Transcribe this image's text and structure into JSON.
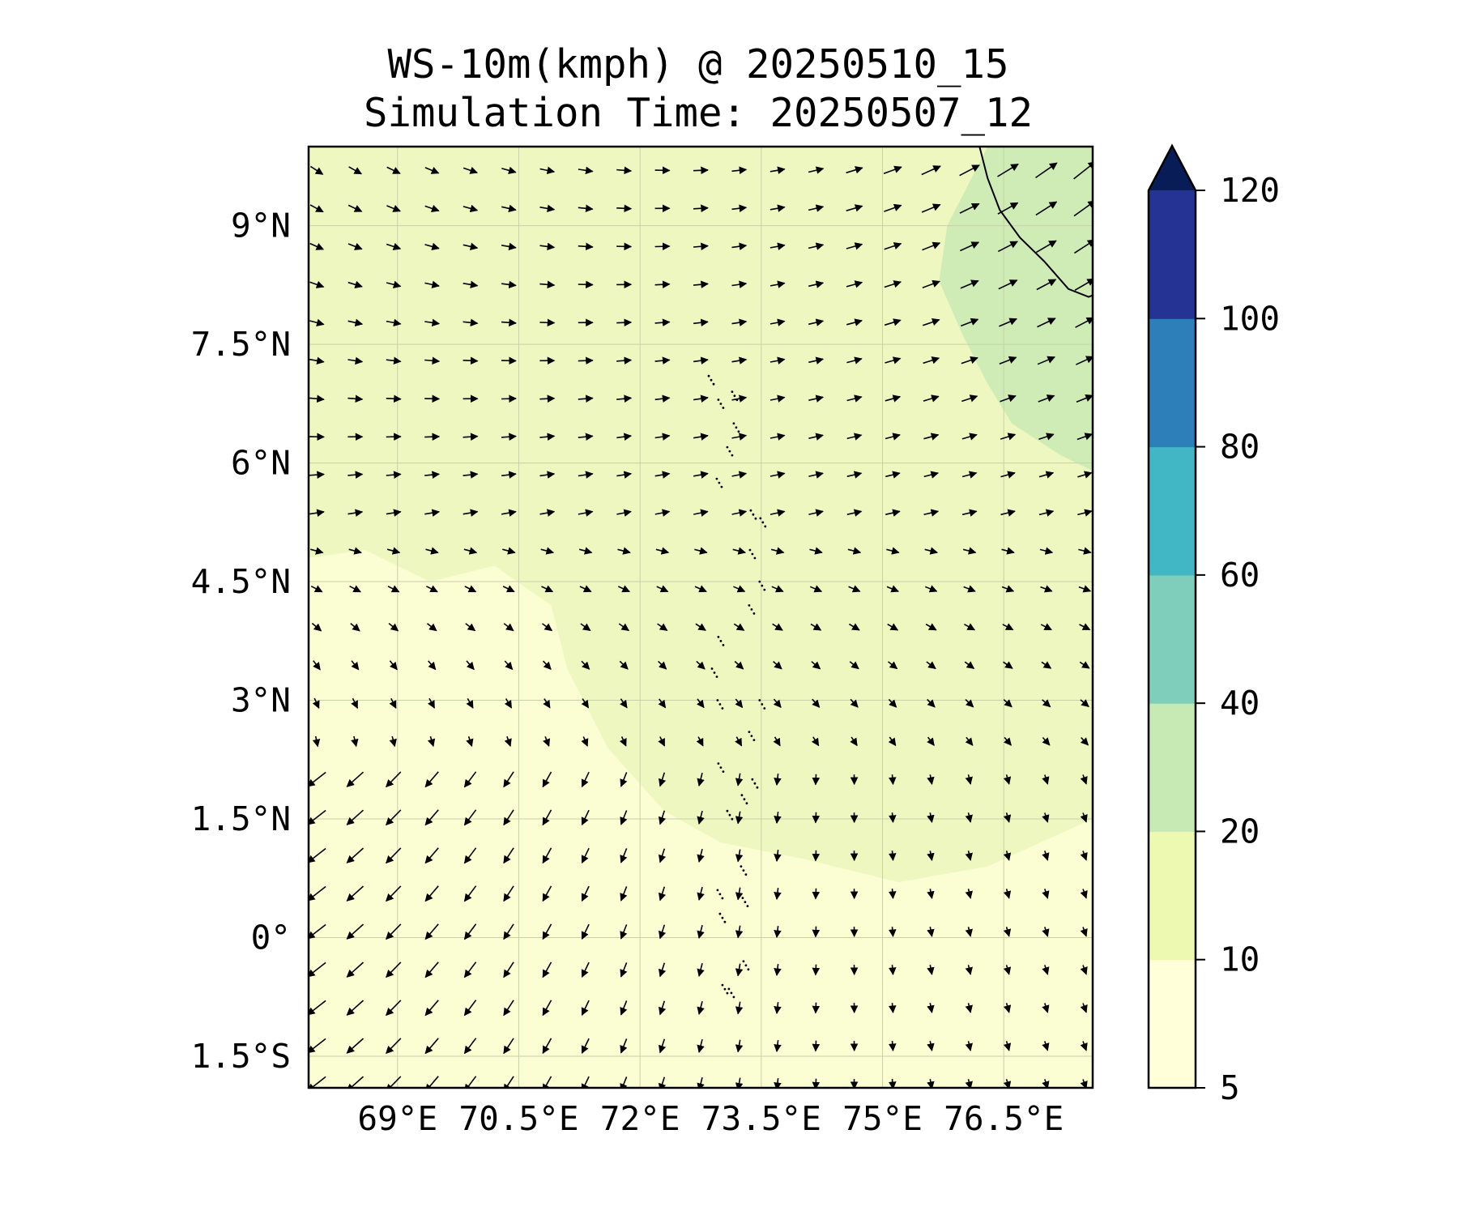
{
  "title": {
    "line1": "WS-10m(kmph) @ 20250510_15",
    "line2": "Simulation Time: 20250507_12"
  },
  "map": {
    "lon_range": [
      67.9,
      77.6
    ],
    "lat_range": [
      -1.9,
      10.0
    ],
    "lat_ticks": [
      {
        "value": 9,
        "label": "9°N"
      },
      {
        "value": 7.5,
        "label": "7.5°N"
      },
      {
        "value": 6,
        "label": "6°N"
      },
      {
        "value": 4.5,
        "label": "4.5°N"
      },
      {
        "value": 3,
        "label": "3°N"
      },
      {
        "value": 1.5,
        "label": "1.5°N"
      },
      {
        "value": 0,
        "label": "0°"
      },
      {
        "value": -1.5,
        "label": "1.5°S"
      }
    ],
    "lon_ticks": [
      {
        "value": 69,
        "label": "69°E"
      },
      {
        "value": 70.5,
        "label": "70.5°E"
      },
      {
        "value": 72,
        "label": "72°E"
      },
      {
        "value": 73.5,
        "label": "73.5°E"
      },
      {
        "value": 75,
        "label": "75°E"
      },
      {
        "value": 76.5,
        "label": "76.5°E"
      }
    ],
    "background_color": "#eef7c0",
    "grid": true,
    "wind_vectors": "black arrows, westerly in north turning southeasterly in south",
    "colorbar": {
      "levels": [
        5,
        10,
        20,
        40,
        60,
        80,
        100,
        120
      ],
      "labels": [
        "5",
        "10",
        "20",
        "40",
        "60",
        "80",
        "100",
        "120"
      ],
      "colors": [
        "#ffffd9",
        "#edf8b1",
        "#c7e9b4",
        "#7fcdbb",
        "#41b6c4",
        "#2c7fb8",
        "#253494"
      ],
      "extend_color": "#081d58",
      "extend": "max"
    }
  }
}
